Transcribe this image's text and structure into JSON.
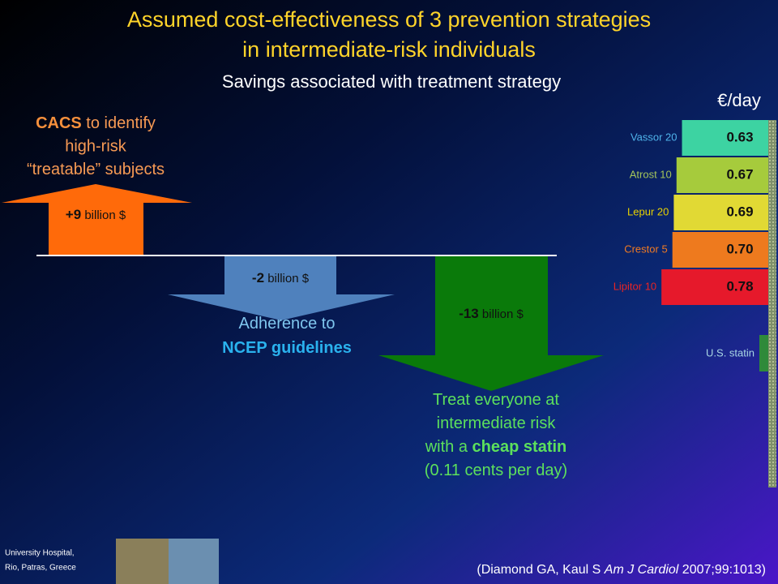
{
  "header": {
    "title_lines": [
      "Assumed cost-effectiveness of 3 prevention strategies",
      "in intermediate-risk individuals"
    ],
    "subtitle": "Savings associated with treatment strategy"
  },
  "strategies": [
    {
      "amount": "+9",
      "unit": " billion $",
      "description": [
        [
          {
            "text": "CACS",
            "bold": true
          },
          {
            "text": " to identify"
          }
        ],
        [
          {
            "text": "high-risk"
          }
        ],
        [
          {
            "text": "“treatable” subjects"
          }
        ]
      ]
    },
    {
      "amount": "-2",
      "unit": " billion $",
      "description": [
        [
          {
            "text": "Adherence to"
          }
        ],
        [
          {
            "text": "NCEP guidelines",
            "bold": true
          }
        ]
      ]
    },
    {
      "amount": "-13",
      "unit": " billion $",
      "description": [
        [
          {
            "text": "Treat everyone at"
          }
        ],
        [
          {
            "text": "intermediate risk"
          }
        ],
        [
          {
            "text": "with a "
          },
          {
            "text": "cheap statin",
            "bold": true
          }
        ],
        [
          {
            "text": "(0.11 cents per day)"
          }
        ]
      ]
    }
  ],
  "cost_chart": {
    "unit_label": "€/day",
    "categories": [
      "Vassor 20",
      "Atrost 10",
      "Lepur 20",
      "Crestor 5",
      "Lipitor 10"
    ],
    "values": [
      0.63,
      0.67,
      0.69,
      0.7,
      0.78
    ],
    "value_labels": [
      "0.63",
      "0.67",
      "0.69",
      "0.70",
      "0.78"
    ],
    "colors": [
      "#3dd3a2",
      "#a6cb3c",
      "#e1d934",
      "#ee7a1e",
      "#e6192b"
    ],
    "label_colors": [
      "#4fb3ea",
      "#a3c45a",
      "#e8d200",
      "#f07a22",
      "#e82424"
    ],
    "extra_label": "U.S. statin"
  },
  "footer": {
    "institution_lines": [
      "University Hospital,",
      "Rio, Patras, Greece"
    ],
    "citation": [
      {
        "text": "(Diamond GA, Kaul S  "
      },
      {
        "text": "Am J Cardiol",
        "italic": true
      },
      {
        "text": " 2007;99:1013)"
      }
    ]
  }
}
